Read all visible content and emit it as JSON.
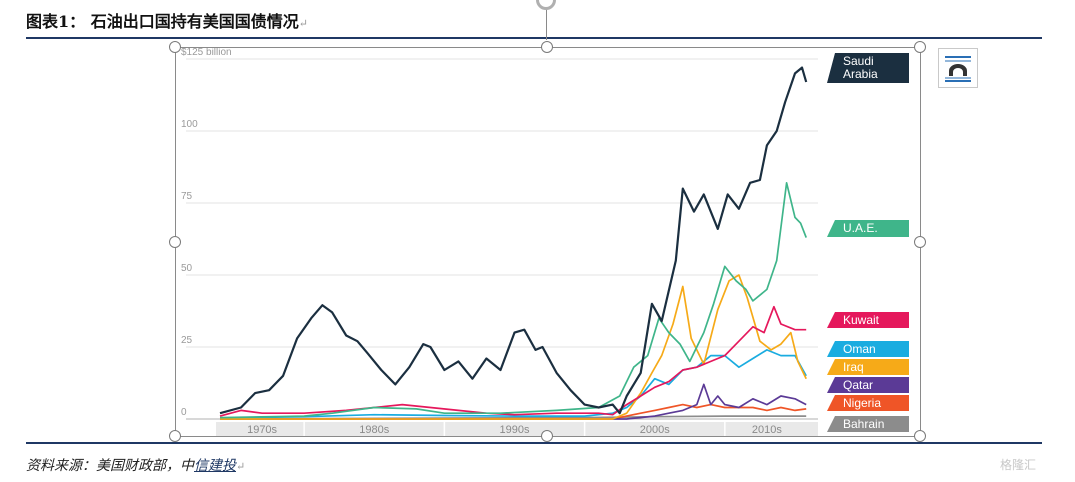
{
  "document": {
    "figure_title": "图表1：  石油出口国持有美国国债情况",
    "source_prefix": "资料来源：美国财政部，中",
    "source_link": "信建投",
    "return_mark": "↵",
    "watermark": "格隆汇"
  },
  "chart_data": {
    "type": "line",
    "y_unit_label": "$125 billion",
    "y_ticks": [
      {
        "value": 125,
        "label": "$125 billion"
      },
      {
        "value": 100,
        "label": "100"
      },
      {
        "value": 75,
        "label": "75"
      },
      {
        "value": 50,
        "label": "50"
      },
      {
        "value": 25,
        "label": "25"
      },
      {
        "value": 0,
        "label": "0"
      }
    ],
    "ylim": [
      0,
      125
    ],
    "xlim": [
      1974,
      2016.5
    ],
    "decades": [
      {
        "label": "1970s",
        "center": 1977
      },
      {
        "label": "1980s",
        "center": 1985
      },
      {
        "label": "1990s",
        "center": 1995
      },
      {
        "label": "2000s",
        "center": 2005
      },
      {
        "label": "2010s",
        "center": 2013
      }
    ],
    "grid": true,
    "legend": "right, labels at series end",
    "series": [
      {
        "name": "Saudi Arabia",
        "color": "#1b2f40",
        "points": [
          [
            1974,
            2
          ],
          [
            1975.5,
            4
          ],
          [
            1976.5,
            9
          ],
          [
            1977.5,
            10
          ],
          [
            1978.5,
            15
          ],
          [
            1979.5,
            28
          ],
          [
            1980.5,
            35
          ],
          [
            1981.3,
            39.5
          ],
          [
            1982,
            37
          ],
          [
            1983,
            29
          ],
          [
            1983.8,
            27
          ],
          [
            1984.5,
            23
          ],
          [
            1985.5,
            17
          ],
          [
            1986.5,
            12
          ],
          [
            1987.5,
            18
          ],
          [
            1988.5,
            26
          ],
          [
            1989,
            25
          ],
          [
            1990,
            17
          ],
          [
            1991,
            20
          ],
          [
            1992,
            14
          ],
          [
            1993,
            21
          ],
          [
            1994,
            17
          ],
          [
            1995,
            30
          ],
          [
            1995.7,
            31
          ],
          [
            1996.5,
            24
          ],
          [
            1997,
            25
          ],
          [
            1998,
            16
          ],
          [
            1999,
            10
          ],
          [
            2000,
            5
          ],
          [
            2001,
            4
          ],
          [
            2002,
            5
          ],
          [
            2002.5,
            2
          ],
          [
            2003,
            8
          ],
          [
            2004,
            16
          ],
          [
            2004.8,
            40
          ],
          [
            2005.5,
            34
          ],
          [
            2006.5,
            55
          ],
          [
            2007,
            80
          ],
          [
            2007.8,
            72
          ],
          [
            2008.5,
            78
          ],
          [
            2009.5,
            66
          ],
          [
            2010.2,
            78
          ],
          [
            2011,
            73
          ],
          [
            2011.8,
            82
          ],
          [
            2012.5,
            83
          ],
          [
            2013,
            95
          ],
          [
            2013.7,
            100
          ],
          [
            2014.3,
            110
          ],
          [
            2015,
            120
          ],
          [
            2015.5,
            122
          ],
          [
            2015.8,
            117
          ]
        ]
      },
      {
        "name": "U.A.E.",
        "color": "#3fb58a",
        "points": [
          [
            1974,
            0.5
          ],
          [
            1980,
            1
          ],
          [
            1982,
            2
          ],
          [
            1985,
            4
          ],
          [
            1988,
            3.5
          ],
          [
            1990,
            2
          ],
          [
            1994,
            2
          ],
          [
            1998,
            3
          ],
          [
            2001,
            4
          ],
          [
            2002.5,
            8
          ],
          [
            2003.5,
            18
          ],
          [
            2004.5,
            22
          ],
          [
            2005.3,
            35
          ],
          [
            2006,
            30
          ],
          [
            2006.8,
            26
          ],
          [
            2007.5,
            20
          ],
          [
            2008.5,
            30
          ],
          [
            2009.2,
            40
          ],
          [
            2010,
            53
          ],
          [
            2010.8,
            48
          ],
          [
            2011.5,
            45
          ],
          [
            2012,
            41
          ],
          [
            2013,
            45
          ],
          [
            2013.7,
            55
          ],
          [
            2014.4,
            82
          ],
          [
            2015,
            70
          ],
          [
            2015.4,
            68
          ],
          [
            2015.8,
            63
          ]
        ]
      },
      {
        "name": "Kuwait",
        "color": "#e5185c",
        "points": [
          [
            1974,
            1
          ],
          [
            1975.5,
            3
          ],
          [
            1977,
            2
          ],
          [
            1980,
            2
          ],
          [
            1983,
            3
          ],
          [
            1985,
            4
          ],
          [
            1987,
            5
          ],
          [
            1989,
            4
          ],
          [
            1991,
            3
          ],
          [
            1993,
            2
          ],
          [
            1995,
            1.5
          ],
          [
            1998,
            2
          ],
          [
            2001,
            2
          ],
          [
            2002,
            1.5
          ],
          [
            2003,
            5
          ],
          [
            2004,
            8
          ],
          [
            2005,
            11
          ],
          [
            2006,
            13
          ],
          [
            2007,
            17
          ],
          [
            2008,
            18
          ],
          [
            2009,
            20
          ],
          [
            2010,
            22
          ],
          [
            2011,
            27
          ],
          [
            2012,
            32
          ],
          [
            2012.8,
            30
          ],
          [
            2013.5,
            39
          ],
          [
            2014,
            33
          ],
          [
            2015,
            31
          ],
          [
            2015.8,
            31
          ]
        ]
      },
      {
        "name": "Oman",
        "color": "#1aace0",
        "points": [
          [
            1974,
            0.3
          ],
          [
            1980,
            0.8
          ],
          [
            1985,
            1.5
          ],
          [
            1990,
            1.2
          ],
          [
            1995,
            1
          ],
          [
            2000,
            1
          ],
          [
            2002,
            2
          ],
          [
            2003,
            4
          ],
          [
            2004,
            8
          ],
          [
            2005,
            14
          ],
          [
            2006,
            12
          ],
          [
            2007,
            17
          ],
          [
            2008,
            18
          ],
          [
            2009,
            22
          ],
          [
            2010,
            22
          ],
          [
            2011,
            18
          ],
          [
            2012,
            21
          ],
          [
            2013,
            24
          ],
          [
            2014,
            22
          ],
          [
            2015,
            22
          ],
          [
            2015.8,
            15
          ]
        ]
      },
      {
        "name": "Iraq",
        "color": "#f6aa18",
        "points": [
          [
            1974,
            0
          ],
          [
            2002,
            0
          ],
          [
            2003,
            2
          ],
          [
            2004,
            9
          ],
          [
            2004.8,
            16
          ],
          [
            2005.5,
            22
          ],
          [
            2006.3,
            33
          ],
          [
            2007,
            46
          ],
          [
            2007.6,
            28
          ],
          [
            2008.5,
            19
          ],
          [
            2009.5,
            38
          ],
          [
            2010.3,
            48
          ],
          [
            2011,
            50
          ],
          [
            2011.6,
            42
          ],
          [
            2012.5,
            27
          ],
          [
            2013.3,
            24
          ],
          [
            2014,
            26
          ],
          [
            2014.7,
            30
          ],
          [
            2015.2,
            20
          ],
          [
            2015.8,
            14
          ]
        ]
      },
      {
        "name": "Qatar",
        "color": "#5b3a96",
        "points": [
          [
            1974,
            0
          ],
          [
            2003,
            0
          ],
          [
            2005,
            1
          ],
          [
            2006,
            2
          ],
          [
            2007,
            3
          ],
          [
            2008,
            5
          ],
          [
            2008.5,
            12
          ],
          [
            2009,
            5
          ],
          [
            2009.5,
            8
          ],
          [
            2010,
            5
          ],
          [
            2011,
            4
          ],
          [
            2012,
            7
          ],
          [
            2013,
            5
          ],
          [
            2014,
            8
          ],
          [
            2015,
            7
          ],
          [
            2015.8,
            5
          ]
        ]
      },
      {
        "name": "Nigeria",
        "color": "#ef5527",
        "points": [
          [
            1974,
            0
          ],
          [
            2002,
            0
          ],
          [
            2003,
            1
          ],
          [
            2004,
            2
          ],
          [
            2005,
            3
          ],
          [
            2006,
            4
          ],
          [
            2007,
            5
          ],
          [
            2008,
            4
          ],
          [
            2009,
            5
          ],
          [
            2010,
            4
          ],
          [
            2011,
            4
          ],
          [
            2012,
            4
          ],
          [
            2013,
            3
          ],
          [
            2014,
            4
          ],
          [
            2015,
            3
          ],
          [
            2015.8,
            3.5
          ]
        ]
      },
      {
        "name": "Bahrain",
        "color": "#8c8c8c",
        "points": [
          [
            1974,
            0
          ],
          [
            1990,
            0.3
          ],
          [
            2000,
            0.5
          ],
          [
            2005,
            0.8
          ],
          [
            2010,
            1
          ],
          [
            2015.8,
            1
          ]
        ]
      }
    ]
  }
}
